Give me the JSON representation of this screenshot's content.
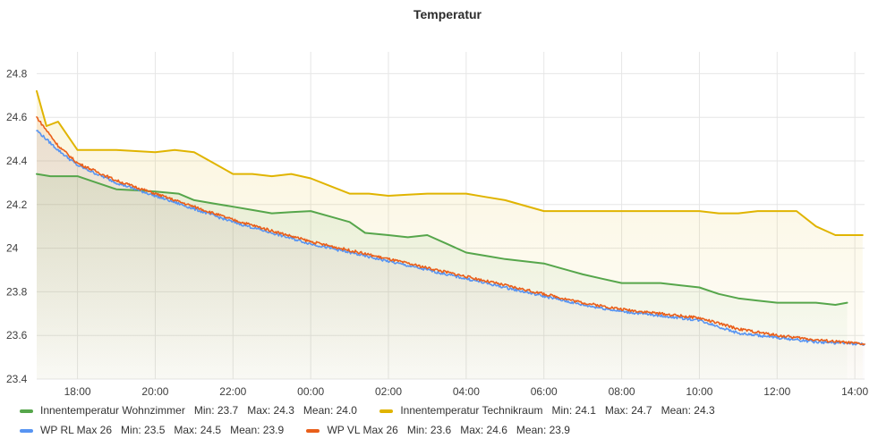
{
  "chart_data": {
    "type": "line",
    "title": "Temperatur",
    "xlabel": "",
    "ylabel": "",
    "x_ticks": [
      "18:00",
      "20:00",
      "22:00",
      "00:00",
      "02:00",
      "04:00",
      "06:00",
      "08:00",
      "10:00",
      "12:00",
      "14:00"
    ],
    "x_range_hours": [
      -1.05,
      20.25
    ],
    "y_ticks": [
      "24.8",
      "24.6",
      "24.4",
      "24.2",
      "24",
      "23.8",
      "23.6",
      "23.4"
    ],
    "ylim": [
      23.4,
      24.9
    ],
    "grid": true,
    "legend_position": "bottom",
    "series": [
      {
        "name": "Innentemperatur Wohnzimmer",
        "color": "#56a64b",
        "stats": {
          "min": "Min: 23.7",
          "max": "Max: 24.3",
          "mean": "Mean: 24.0"
        },
        "x": [
          -1.05,
          -0.7,
          0.0,
          1.0,
          2.0,
          2.6,
          3.0,
          4.0,
          5.0,
          6.0,
          7.0,
          7.4,
          8.0,
          8.5,
          9.0,
          10.0,
          11.0,
          12.0,
          13.0,
          14.0,
          15.0,
          16.0,
          16.5,
          17.0,
          18.0,
          19.0,
          19.5,
          19.8
        ],
        "y": [
          24.34,
          24.33,
          24.33,
          24.27,
          24.26,
          24.25,
          24.22,
          24.19,
          24.16,
          24.17,
          24.12,
          24.07,
          24.06,
          24.05,
          24.06,
          23.98,
          23.95,
          23.93,
          23.88,
          23.84,
          23.84,
          23.82,
          23.79,
          23.77,
          23.75,
          23.75,
          23.74,
          23.75
        ]
      },
      {
        "name": "Innentemperatur Technikraum",
        "color": "#e0b400",
        "stats": {
          "min": "Min: 24.1",
          "max": "Max: 24.7",
          "mean": "Mean: 24.3"
        },
        "x": [
          -1.05,
          -0.8,
          -0.5,
          0.0,
          1.0,
          2.0,
          2.5,
          3.0,
          4.0,
          4.5,
          5.0,
          5.5,
          6.0,
          7.0,
          7.5,
          8.0,
          9.0,
          10.0,
          11.0,
          12.0,
          13.0,
          14.0,
          14.5,
          15.0,
          16.0,
          16.5,
          17.0,
          17.5,
          18.0,
          18.5,
          19.0,
          19.5,
          20.2
        ],
        "y": [
          24.72,
          24.56,
          24.58,
          24.45,
          24.45,
          24.44,
          24.45,
          24.44,
          24.34,
          24.34,
          24.33,
          24.34,
          24.32,
          24.25,
          24.25,
          24.24,
          24.25,
          24.25,
          24.22,
          24.17,
          24.17,
          24.17,
          24.17,
          24.17,
          24.17,
          24.16,
          24.16,
          24.17,
          24.17,
          24.17,
          24.1,
          24.06,
          24.06
        ]
      },
      {
        "name": "WP RL Max 26",
        "color": "#5794f2",
        "stats": {
          "min": "Min: 23.5",
          "max": "Max: 24.5",
          "mean": "Mean: 23.9"
        },
        "x": [
          -1.05,
          -0.5,
          0.0,
          1.0,
          2.0,
          3.0,
          4.0,
          5.0,
          6.0,
          7.0,
          8.0,
          9.0,
          10.0,
          11.0,
          12.0,
          13.0,
          14.0,
          15.0,
          16.0,
          17.0,
          18.0,
          19.0,
          20.25
        ],
        "y": [
          24.54,
          24.45,
          24.38,
          24.3,
          24.24,
          24.18,
          24.12,
          24.07,
          24.02,
          23.98,
          23.94,
          23.9,
          23.86,
          23.82,
          23.78,
          23.74,
          23.71,
          23.69,
          23.67,
          23.61,
          23.59,
          23.57,
          23.56
        ]
      },
      {
        "name": "WP VL Max 26",
        "color": "#e95f1a",
        "stats": {
          "min": "Min: 23.6",
          "max": "Max: 24.6",
          "mean": "Mean: 23.9"
        },
        "x": [
          -1.05,
          -0.5,
          0.0,
          1.0,
          2.0,
          3.0,
          4.0,
          5.0,
          6.0,
          7.0,
          8.0,
          9.0,
          10.0,
          11.0,
          12.0,
          13.0,
          14.0,
          15.0,
          16.0,
          17.0,
          18.0,
          19.0,
          20.25
        ],
        "y": [
          24.6,
          24.47,
          24.39,
          24.31,
          24.25,
          24.19,
          24.13,
          24.08,
          24.03,
          23.99,
          23.95,
          23.91,
          23.87,
          23.83,
          23.79,
          23.75,
          23.72,
          23.7,
          23.68,
          23.63,
          23.6,
          23.58,
          23.56
        ]
      }
    ]
  }
}
